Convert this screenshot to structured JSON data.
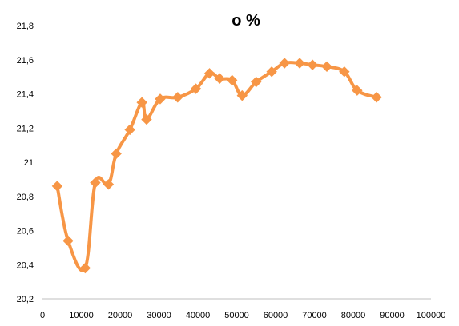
{
  "chart_data": {
    "type": "line",
    "title": "o %",
    "xlabel": "",
    "ylabel": "",
    "xlim": [
      0,
      100000
    ],
    "ylim": [
      20.2,
      21.8
    ],
    "x_ticks": [
      0,
      10000,
      20000,
      30000,
      40000,
      50000,
      60000,
      70000,
      80000,
      90000,
      100000
    ],
    "x_tick_labels": [
      "0",
      "10000",
      "20000",
      "30000",
      "40000",
      "50000",
      "60000",
      "70000",
      "80000",
      "90000",
      "100000"
    ],
    "y_ticks": [
      20.2,
      20.4,
      20.6,
      20.8,
      21,
      21.2,
      21.4,
      21.6,
      21.8
    ],
    "y_tick_labels": [
      "20,2",
      "20,4",
      "20,6",
      "20,8",
      "21",
      "21,2",
      "21,4",
      "21,6",
      "21,8"
    ],
    "grid": false,
    "legend": "none",
    "series": [
      {
        "color": "#f79646",
        "marker": "diamond",
        "smooth": true,
        "points": [
          [
            3800,
            20.86
          ],
          [
            6600,
            20.54
          ],
          [
            11000,
            20.38
          ],
          [
            13600,
            20.88
          ],
          [
            17000,
            20.87
          ],
          [
            19000,
            21.05
          ],
          [
            22500,
            21.19
          ],
          [
            25600,
            21.35
          ],
          [
            26800,
            21.25
          ],
          [
            30300,
            21.37
          ],
          [
            34800,
            21.38
          ],
          [
            39500,
            21.43
          ],
          [
            43000,
            21.52
          ],
          [
            45600,
            21.49
          ],
          [
            48800,
            21.48
          ],
          [
            51400,
            21.39
          ],
          [
            55000,
            21.47
          ],
          [
            59000,
            21.53
          ],
          [
            62300,
            21.58
          ],
          [
            66200,
            21.58
          ],
          [
            69500,
            21.57
          ],
          [
            73200,
            21.56
          ],
          [
            77700,
            21.53
          ],
          [
            81000,
            21.42
          ],
          [
            86000,
            21.38
          ]
        ]
      }
    ]
  }
}
